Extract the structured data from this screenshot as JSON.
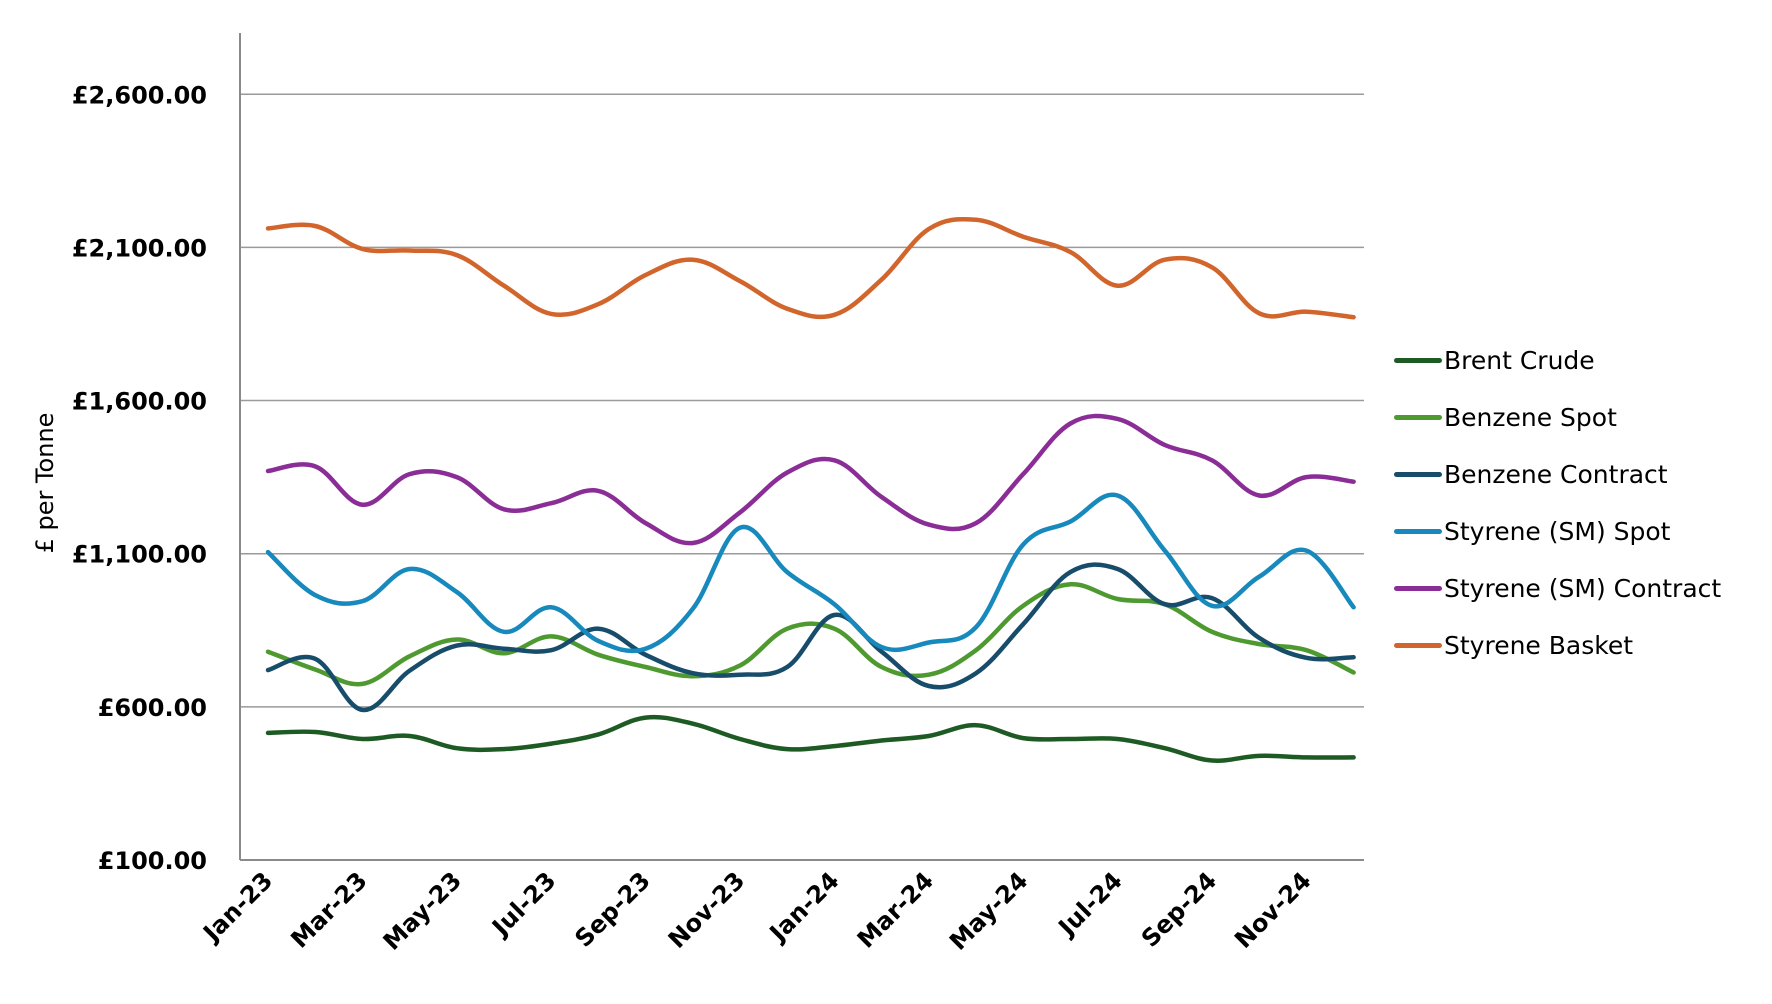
{
  "chart_data": {
    "type": "line",
    "ylabel": "£ per Tonne",
    "xlabel": "",
    "title": "",
    "ylim": [
      100,
      2800
    ],
    "yticks": [
      100,
      600,
      1100,
      1600,
      2100,
      2600
    ],
    "ytick_labels": [
      "£100.00",
      "£600.00",
      "£1,100.00",
      "£1,600.00",
      "£2,100.00",
      "£2,600.00"
    ],
    "x": [
      "Jan-23",
      "Feb-23",
      "Mar-23",
      "Apr-23",
      "May-23",
      "Jun-23",
      "Jul-23",
      "Aug-23",
      "Sep-23",
      "Oct-23",
      "Nov-23",
      "Dec-23",
      "Jan-24",
      "Feb-24",
      "Mar-24",
      "Apr-24",
      "May-24",
      "Jun-24",
      "Jul-24",
      "Aug-24",
      "Sep-24",
      "Oct-24",
      "Nov-24",
      "Dec-24"
    ],
    "xtick_labels": [
      "Jan-23",
      "Mar-23",
      "May-23",
      "Jul-23",
      "Sep-23",
      "Nov-23",
      "Jan-24",
      "Mar-24",
      "May-24",
      "Jul-24",
      "Sep-24",
      "Nov-24"
    ],
    "grid": true,
    "legend_position": "right",
    "series": [
      {
        "name": "Brent Crude",
        "color": "#1e5b24",
        "values": [
          515,
          518,
          495,
          505,
          465,
          462,
          480,
          510,
          565,
          545,
          495,
          462,
          472,
          490,
          505,
          540,
          498,
          495,
          495,
          465,
          425,
          440,
          435,
          435
        ]
      },
      {
        "name": "Benzene Spot",
        "color": "#4e9a31",
        "values": [
          780,
          722,
          675,
          765,
          820,
          775,
          830,
          770,
          730,
          700,
          735,
          855,
          855,
          730,
          705,
          785,
          930,
          1000,
          952,
          935,
          845,
          805,
          785,
          712
        ]
      },
      {
        "name": "Benzene Contract",
        "color": "#174c6a",
        "values": [
          720,
          757,
          590,
          718,
          800,
          790,
          785,
          855,
          770,
          710,
          705,
          730,
          900,
          780,
          668,
          710,
          870,
          1040,
          1050,
          935,
          955,
          825,
          760,
          762
        ]
      },
      {
        "name": "Styrene (SM) Spot",
        "color": "#1789bd",
        "values": [
          1105,
          965,
          945,
          1050,
          975,
          845,
          925,
          815,
          790,
          920,
          1185,
          1040,
          935,
          795,
          810,
          860,
          1130,
          1205,
          1290,
          1110,
          930,
          1025,
          1110,
          925
        ]
      },
      {
        "name": "Styrene (SM) Contract",
        "color": "#8a2d96",
        "values": [
          1370,
          1385,
          1260,
          1360,
          1350,
          1245,
          1265,
          1305,
          1200,
          1135,
          1235,
          1365,
          1405,
          1285,
          1195,
          1200,
          1360,
          1525,
          1540,
          1455,
          1405,
          1290,
          1350,
          1335
        ]
      },
      {
        "name": "Styrene Basket",
        "color": "#d2652c",
        "values": [
          2162,
          2170,
          2095,
          2090,
          2075,
          1975,
          1883,
          1915,
          2010,
          2060,
          1990,
          1900,
          1880,
          1995,
          2160,
          2190,
          2135,
          2085,
          1975,
          2060,
          2035,
          1885,
          1890,
          1872
        ]
      }
    ]
  }
}
